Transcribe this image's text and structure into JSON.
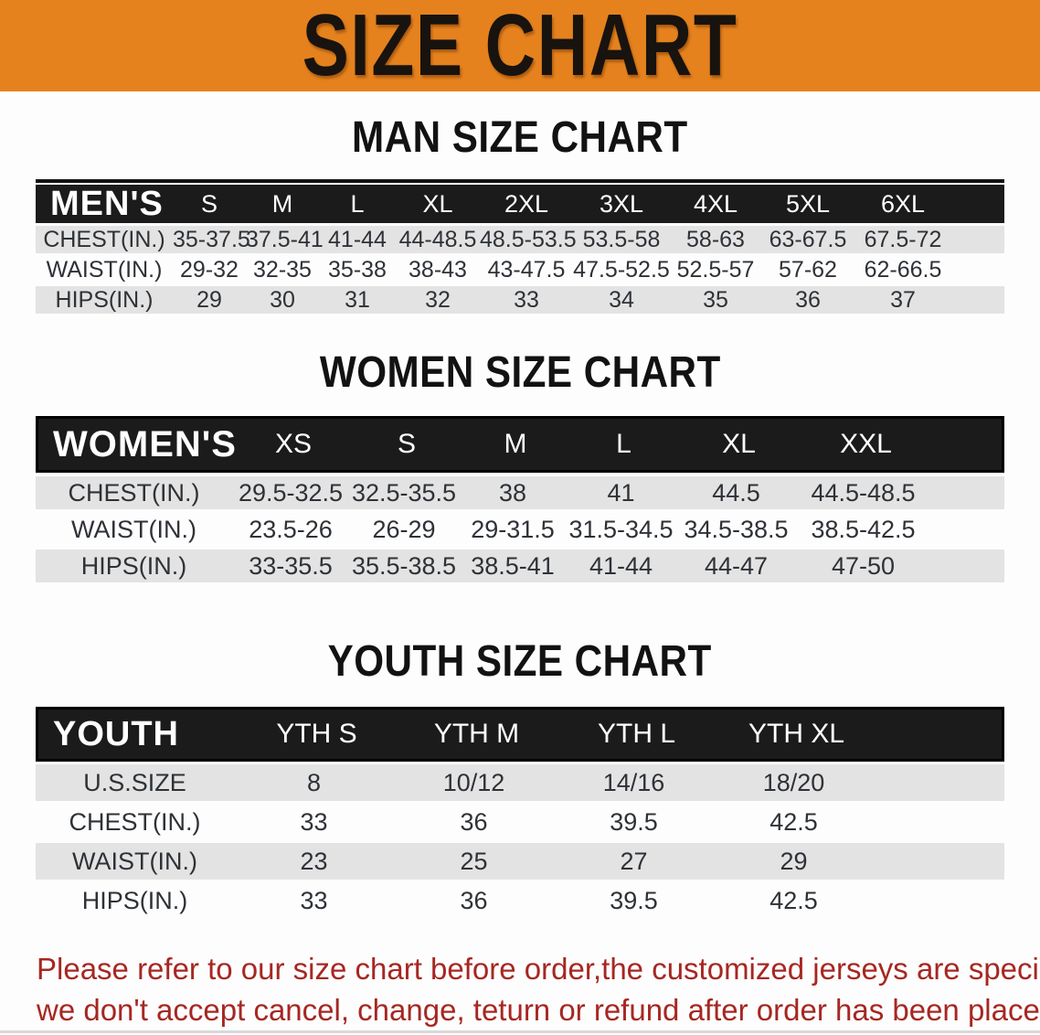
{
  "banner": {
    "title": "SIZE CHART"
  },
  "colors": {
    "banner_bg": "#E5821E",
    "band_bg": "#1b1b1b",
    "row_alt_bg": "#E3E3E3",
    "disclaimer_red": "#A62722"
  },
  "sections": [
    {
      "title": "MAN SIZE CHART",
      "group_label": "MEN'S",
      "columns": [
        "S",
        "M",
        "L",
        "XL",
        "2XL",
        "3XL",
        "4XL",
        "5XL",
        "6XL"
      ],
      "rows": [
        {
          "label": "CHEST(IN.)",
          "values": [
            "35-37.5",
            "37.5-41",
            "41-44",
            "44-48.5",
            "48.5-53.5",
            "53.5-58",
            "58-63",
            "63-67.5",
            "67.5-72"
          ]
        },
        {
          "label": "WAIST(IN.)",
          "values": [
            "29-32",
            "32-35",
            "35-38",
            "38-43",
            "43-47.5",
            "47.5-52.5",
            "52.5-57",
            "57-62",
            "62-66.5"
          ]
        },
        {
          "label": "HIPS(IN.)",
          "values": [
            "29",
            "30",
            "31",
            "32",
            "33",
            "34",
            "35",
            "36",
            "37"
          ]
        }
      ]
    },
    {
      "title": "WOMEN SIZE CHART",
      "group_label": "WOMEN'S",
      "columns": [
        "XS",
        "S",
        "M",
        "L",
        "XL",
        "XXL"
      ],
      "rows": [
        {
          "label": "CHEST(IN.)",
          "values": [
            "29.5-32.5",
            "32.5-35.5",
            "38",
            "41",
            "44.5",
            "44.5-48.5"
          ]
        },
        {
          "label": "WAIST(IN.)",
          "values": [
            "23.5-26",
            "26-29",
            "29-31.5",
            "31.5-34.5",
            "34.5-38.5",
            "38.5-42.5"
          ]
        },
        {
          "label": "HIPS(IN.)",
          "values": [
            "33-35.5",
            "35.5-38.5",
            "38.5-41",
            "41-44",
            "44-47",
            "47-50"
          ]
        }
      ]
    },
    {
      "title": "YOUTH SIZE CHART",
      "group_label": "YOUTH",
      "columns": [
        "YTH S",
        "YTH M",
        "YTH L",
        "YTH XL"
      ],
      "rows": [
        {
          "label": "U.S.SIZE",
          "values": [
            "8",
            "10/12",
            "14/16",
            "18/20"
          ]
        },
        {
          "label": "CHEST(IN.)",
          "values": [
            "33",
            "36",
            "39.5",
            "42.5"
          ]
        },
        {
          "label": "WAIST(IN.)",
          "values": [
            "23",
            "25",
            "27",
            "29"
          ]
        },
        {
          "label": "HIPS(IN.)",
          "values": [
            "33",
            "36",
            "39.5",
            "42.5"
          ]
        }
      ]
    }
  ],
  "disclaimer": {
    "line1": "Please refer to our size chart before order,the customized jerseys are special products,",
    "line2": "we don't accept cancel, change, teturn or refund after order has been placed!"
  }
}
